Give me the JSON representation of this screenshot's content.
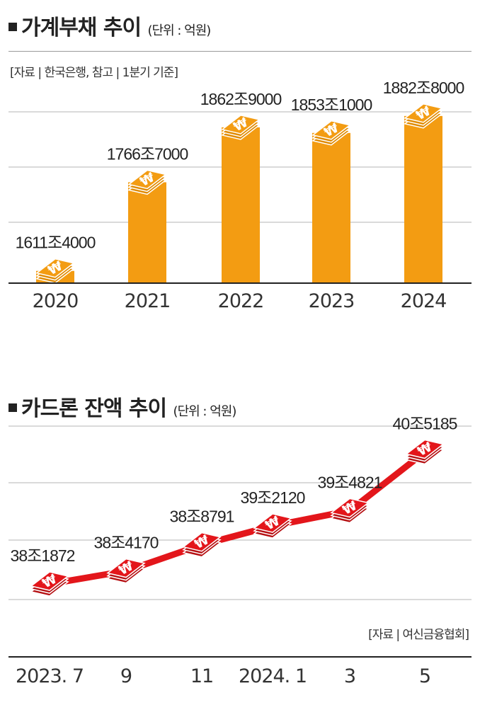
{
  "chart_data": [
    {
      "type": "bar",
      "title": "가계부채 추이",
      "unit": "(단위 : 억원)",
      "source": "[자료 | 한국은행, 참고 | 1분기 기준]",
      "categories": [
        "2020",
        "2021",
        "2022",
        "2023",
        "2024"
      ],
      "values": [
        16114000,
        17667000,
        18629000,
        18531000,
        18828000
      ],
      "value_labels": [
        "1611조4000",
        "1766조7000",
        "1862조9000",
        "1853조1000",
        "1882조8000"
      ],
      "color": "#f39c12",
      "ylim": [
        15900000,
        19000000
      ],
      "grid": true
    },
    {
      "type": "line",
      "title": "카드론 잔액 추이",
      "unit": "(단위 : 억원)",
      "source": "[자료 | 여신금융협회]",
      "categories": [
        "2023. 7",
        "9",
        "11",
        "2024. 1",
        "3",
        "5"
      ],
      "values": [
        381872,
        384170,
        388791,
        392120,
        394821,
        405185
      ],
      "value_labels": [
        "38조1872",
        "38조4170",
        "38조8791",
        "39조2120",
        "39조4821",
        "40조5185"
      ],
      "color": "#e3161b",
      "ylim": [
        375000,
        410000
      ],
      "grid": true
    }
  ]
}
